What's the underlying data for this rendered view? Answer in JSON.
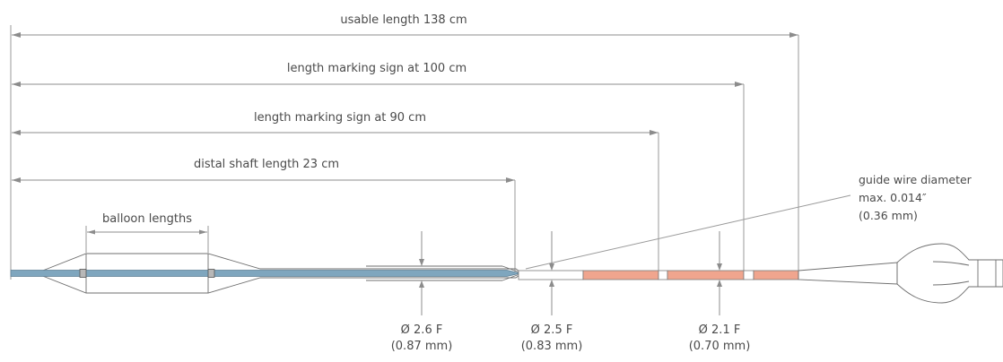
{
  "diagram": {
    "dimensions": {
      "usable_length": "usable length 138 cm",
      "marking_100": "length marking sign at 100 cm",
      "marking_90": "length marking sign at 90 cm",
      "distal_shaft": "distal shaft length 23 cm",
      "balloon_lengths": "balloon lengths"
    },
    "guide_wire": {
      "line1": "guide wire diameter",
      "line2": "max. 0.014″",
      "line3": "(0.36 mm)"
    },
    "diameters": [
      {
        "f": "Ø 2.6 F",
        "mm": "(0.87 mm)"
      },
      {
        "f": "Ø 2.5 F",
        "mm": "(0.83 mm)"
      },
      {
        "f": "Ø 2.1 F",
        "mm": "(0.70 mm)"
      }
    ],
    "colors": {
      "shaft_blue": "#7fa6be",
      "marker_salmon": "#f0a58e",
      "dimension_gray": "#8c8c8c",
      "text": "#4a4a4a"
    }
  }
}
